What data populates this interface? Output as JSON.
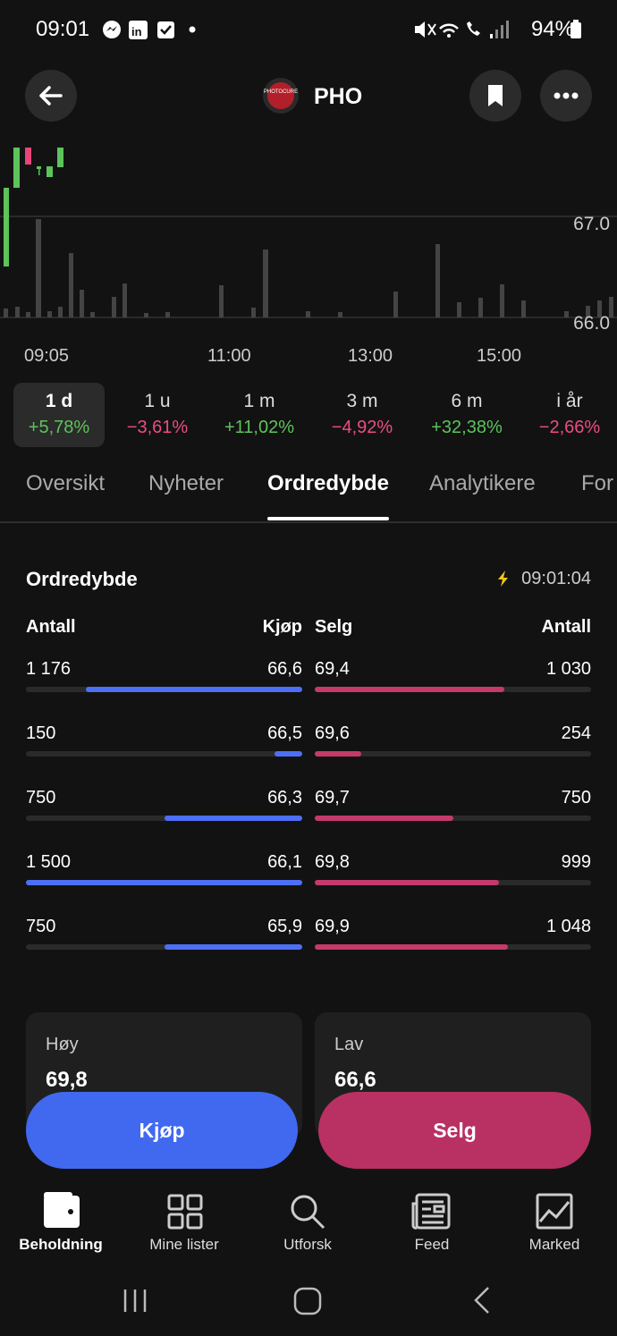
{
  "status_bar": {
    "time": "09:01",
    "battery": "94%"
  },
  "header": {
    "logo_text": "PHOTOCURE",
    "title": "PHO"
  },
  "price_chart": {
    "price_labels": [
      "67.0",
      "66.0"
    ],
    "time_labels": [
      "09:05",
      "11:00",
      "13:00",
      "15:00"
    ]
  },
  "periods": [
    {
      "label": "1 d",
      "change": "+5,78%",
      "direction": "up",
      "selected": true
    },
    {
      "label": "1 u",
      "change": "−3,61%",
      "direction": "down",
      "selected": false
    },
    {
      "label": "1 m",
      "change": "+11,02%",
      "direction": "up",
      "selected": false
    },
    {
      "label": "3 m",
      "change": "−4,92%",
      "direction": "down",
      "selected": false
    },
    {
      "label": "6 m",
      "change": "+32,38%",
      "direction": "up",
      "selected": false
    },
    {
      "label": "i år",
      "change": "−2,66%",
      "direction": "down",
      "selected": false
    }
  ],
  "tabs": {
    "items": [
      "Oversikt",
      "Nyheter",
      "Ordredybde",
      "Analytikere",
      "For"
    ],
    "active": 2
  },
  "order_depth": {
    "title": "Ordredybde",
    "updated": "09:01:04",
    "headers": {
      "buy_qty": "Antall",
      "buy_price": "Kjøp",
      "sell_price": "Selg",
      "sell_qty": "Antall"
    },
    "rows": [
      {
        "buy_qty": {
          "value": 1176,
          "label": "1 176"
        },
        "buy_price": "66,6",
        "sell_price": "69,4",
        "sell_qty": {
          "value": 1030,
          "label": "1 030"
        }
      },
      {
        "buy_qty": 150,
        "buy_price": "66,5",
        "sell_price": "69,6",
        "sell_qty": 254
      },
      {
        "buy_qty": 750,
        "buy_price": "66,3",
        "sell_price": "69,7",
        "sell_qty": 750
      },
      {
        "buy_qty": {
          "value": 1500,
          "label": "1 500"
        },
        "buy_price": "66,1",
        "sell_price": "69,8",
        "sell_qty": 999
      },
      {
        "buy_qty": 750,
        "buy_price": "65,9",
        "sell_price": "69,9",
        "sell_qty": {
          "value": 1048,
          "label": "1 048"
        }
      }
    ]
  },
  "stats": [
    {
      "label": "Høy",
      "value": "69,8"
    },
    {
      "label": "Lav",
      "value": "66,6"
    }
  ],
  "actions": {
    "buy": "Kjøp",
    "sell": "Selg"
  },
  "bottom_nav": [
    "Beholdning",
    "Mine lister",
    "Utforsk",
    "Feed",
    "Marked"
  ]
}
